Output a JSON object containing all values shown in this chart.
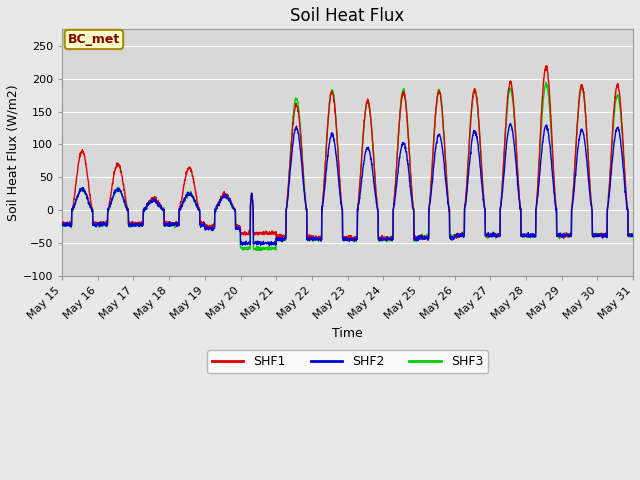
{
  "title": "Soil Heat Flux",
  "xlabel": "Time",
  "ylabel": "Soil Heat Flux (W/m2)",
  "ylim": [
    -100,
    275
  ],
  "yticks": [
    -100,
    -50,
    0,
    50,
    100,
    150,
    200,
    250
  ],
  "fig_bg": "#e8e8e8",
  "plot_bg": "#d8d8d8",
  "grid_color": "#ffffff",
  "line_colors": {
    "SHF1": "#dd0000",
    "SHF2": "#0000dd",
    "SHF3": "#00cc00"
  },
  "line_width": 1.0,
  "annotation_text": "BC_met",
  "annotation_fg": "#880000",
  "annotation_bg": "#ffffcc",
  "annotation_border": "#aa8800",
  "start_day": 15,
  "n_days": 16,
  "xtick_labels": [
    "May 15",
    "May 16",
    "May 17",
    "May 18",
    "May 19",
    "May 20",
    "May 21",
    "May 22",
    "May 23",
    "May 24",
    "May 25",
    "May 26",
    "May 27",
    "May 28",
    "May 29",
    "May 30"
  ],
  "peaks_shf1": [
    90,
    70,
    18,
    65,
    25,
    0,
    160,
    180,
    165,
    178,
    180,
    183,
    195,
    218,
    190,
    190
  ],
  "peaks_shf2": [
    32,
    32,
    15,
    25,
    22,
    0,
    125,
    115,
    95,
    102,
    115,
    120,
    130,
    128,
    122,
    125
  ],
  "peaks_shf3": [
    32,
    32,
    15,
    25,
    22,
    0,
    170,
    182,
    165,
    182,
    182,
    182,
    185,
    192,
    188,
    175
  ],
  "night_shf1": [
    -20,
    -20,
    -20,
    -20,
    -25,
    -35,
    -40,
    -42,
    -42,
    -42,
    -42,
    -38,
    -38,
    -38,
    -38,
    -38
  ],
  "night_shf2": [
    -22,
    -22,
    -22,
    -22,
    -28,
    -50,
    -44,
    -44,
    -44,
    -44,
    -42,
    -38,
    -38,
    -38,
    -38,
    -38
  ],
  "night_shf3": [
    -22,
    -22,
    -22,
    -22,
    -25,
    -58,
    -44,
    -44,
    -44,
    -44,
    -40,
    -38,
    -38,
    -38,
    -38,
    -38
  ],
  "rise_hour": 6.5,
  "set_hour": 20.5,
  "pts_per_day": 144,
  "noise": 1.5
}
